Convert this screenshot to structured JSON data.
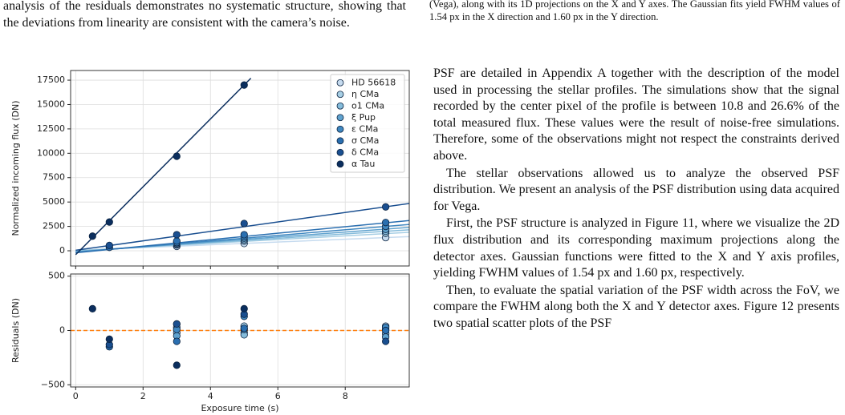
{
  "text": {
    "left_paragraph": "analysis of the residuals demonstrates no systematic structure, showing that the deviations from linearity are consistent with the camera’s noise.",
    "right_caption": "(Vega), along with its 1D projections on the X and Y axes. The Gaussian fits yield FWHM values of 1.54 px in the X direction and 1.60 px in the Y direction.",
    "right_paragraphs": [
      "PSF are detailed in Appendix A together with the description of the model used in processing the stellar profiles. The simulations show that the signal recorded by the center pixel of the profile is between 10.8 and 26.6% of the total measured flux. These values were the result of noise-free simulations. Therefore, some of the observations might not respect the constraints derived above.",
      "The stellar observations allowed us to analyze the observed PSF distribution. We present an analysis of the PSF distribution using data acquired for Vega.",
      "First, the PSF structure is analyzed in Figure 11, where we visualize the 2D flux distribution and its corresponding maximum projections along the detector axes. Gaussian functions were fitted to the X and Y axis profiles, yielding FWHM values of 1.54 px and 1.60 px, respectively.",
      "Then, to evaluate the spatial variation of the PSF width across the FoV, we compare the FWHM along both the X and Y detector axes. Figure 12 presents two spatial scatter plots of the PSF"
    ]
  },
  "chart_data": [
    {
      "type": "scatter",
      "ylabel": "Normalized incoming flux (DN)",
      "xlim": [
        -0.15,
        9.9
      ],
      "ylim": [
        -1560,
        18490
      ],
      "xticks": [
        0,
        2,
        4,
        6,
        8
      ],
      "yticks": [
        0,
        2500,
        5000,
        7500,
        10000,
        12500,
        15000,
        17500
      ],
      "grid": true,
      "legend": "upper right",
      "series": [
        {
          "name": "HD 56618",
          "color": "#c6dbef",
          "x": [
            3,
            5,
            9.2
          ],
          "values": [
            450,
            750,
            1350
          ],
          "fit_x": [
            0,
            9.9
          ],
          "fit_values": [
            50,
            1450
          ]
        },
        {
          "name": "η CMa",
          "color": "#a6cee4",
          "x": [
            3,
            5,
            9.2
          ],
          "values": [
            600,
            1000,
            1800
          ],
          "fit_x": [
            0,
            9.9
          ],
          "fit_values": [
            0,
            1900
          ]
        },
        {
          "name": "o1 CMa",
          "color": "#85bcdb",
          "x": [
            3,
            5,
            9.2
          ],
          "values": [
            700,
            1150,
            2000
          ],
          "fit_x": [
            0,
            9.9
          ],
          "fit_values": [
            -50,
            2150
          ]
        },
        {
          "name": "ξ Pup",
          "color": "#5fa2ce",
          "x": [
            3,
            5,
            9.2
          ],
          "values": [
            800,
            1300,
            2200
          ],
          "fit_x": [
            0,
            9.9
          ],
          "fit_values": [
            -100,
            2400
          ]
        },
        {
          "name": "ε CMa",
          "color": "#3f87c0",
          "x": [
            3,
            5,
            9.2
          ],
          "values": [
            850,
            1450,
            2500
          ],
          "fit_x": [
            0,
            9.9
          ],
          "fit_values": [
            -150,
            2700
          ]
        },
        {
          "name": "σ CMa",
          "color": "#2a6fb0",
          "x": [
            1,
            3,
            5,
            9.2
          ],
          "values": [
            350,
            1000,
            1650,
            2900
          ],
          "fit_x": [
            0,
            9.9
          ],
          "fit_values": [
            -200,
            3100
          ]
        },
        {
          "name": "δ CMa",
          "color": "#1a4f90",
          "x": [
            1,
            3,
            5,
            9.2
          ],
          "values": [
            550,
            1650,
            2800,
            4500
          ],
          "fit_x": [
            0,
            9.9
          ],
          "fit_values": [
            50,
            4850
          ]
        },
        {
          "name": "α Tau",
          "color": "#0b2e5e",
          "x": [
            0.5,
            1,
            3,
            5
          ],
          "values": [
            1500,
            2950,
            9700,
            17000
          ],
          "fit_x": [
            0,
            5.2
          ],
          "fit_values": [
            -400,
            17700
          ]
        }
      ]
    },
    {
      "type": "scatter",
      "ylabel": "Residuals (DN)",
      "xlabel": "Exposure time (s)",
      "xlim": [
        -0.15,
        9.9
      ],
      "ylim": [
        -520,
        520
      ],
      "xticks": [
        0,
        2,
        4,
        6,
        8
      ],
      "yticks": [
        {
          "value": -500,
          "label": "−500"
        },
        0,
        500
      ],
      "grid": true,
      "hline": {
        "value": 0,
        "color": "#ff7f0e"
      },
      "series": [
        {
          "name": "HD 56618",
          "color": "#c6dbef",
          "x": [
            3,
            5,
            9.2
          ],
          "values": [
            30,
            -20,
            40
          ]
        },
        {
          "name": "η CMa",
          "color": "#a6cee4",
          "x": [
            3,
            5,
            9.2
          ],
          "values": [
            -20,
            40,
            -30
          ]
        },
        {
          "name": "o1 CMa",
          "color": "#85bcdb",
          "x": [
            3,
            5,
            9.2
          ],
          "values": [
            60,
            -40,
            10
          ]
        },
        {
          "name": "ξ Pup",
          "color": "#5fa2ce",
          "x": [
            3,
            5,
            9.2
          ],
          "values": [
            -50,
            10,
            -60
          ]
        },
        {
          "name": "ε CMa",
          "color": "#3f87c0",
          "x": [
            3,
            5,
            9.2
          ],
          "values": [
            10,
            130,
            30
          ]
        },
        {
          "name": "σ CMa",
          "color": "#2a6fb0",
          "x": [
            1,
            3,
            5,
            9.2
          ],
          "values": [
            -150,
            -100,
            20,
            0
          ]
        },
        {
          "name": "δ CMa",
          "color": "#1a4f90",
          "x": [
            1,
            3,
            5,
            9.2
          ],
          "values": [
            -130,
            60,
            150,
            -100
          ]
        },
        {
          "name": "α Tau",
          "color": "#0b2e5e",
          "x": [
            0.5,
            1,
            3,
            5
          ],
          "values": [
            200,
            -80,
            -320,
            200
          ]
        }
      ]
    }
  ]
}
